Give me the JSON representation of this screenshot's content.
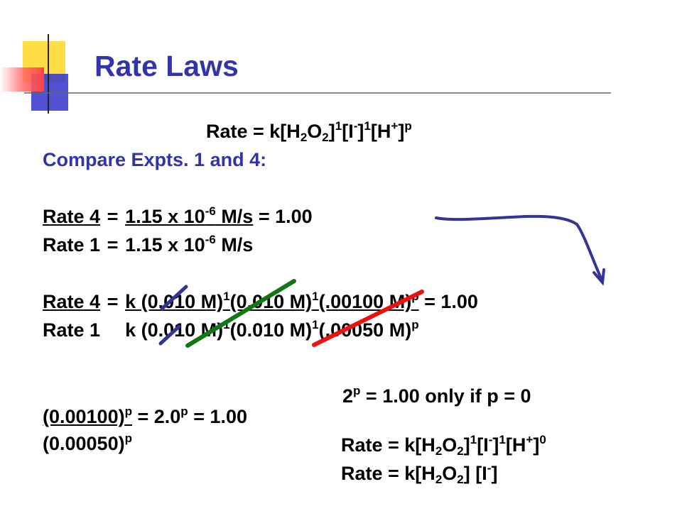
{
  "slide": {
    "title": "Rate Laws",
    "rate_law": {
      "prefix": "Rate = k[H",
      "h2o2_sub1": "2",
      "mid1": "O",
      "h2o2_sub2": "2",
      "mid2": "]",
      "exp1": "1",
      "mid3": "[I",
      "iminus": "-",
      "mid4": "]",
      "exp2": "1",
      "mid5": "[H",
      "hplus": "+",
      "mid6": "]",
      "exp3": "p"
    },
    "compare_heading": "Compare Expts. 1 and 4:",
    "ratio1": {
      "num_label": "Rate 4",
      "den_label": "Rate 1",
      "eq": "=",
      "num_value_a": "1.15 x 10",
      "num_exp": "-6",
      "num_value_b": " M/s",
      "num_result": " = 1.00",
      "den_value_a": "1.15 x 10",
      "den_exp": "-6",
      "den_value_b": " M/s"
    },
    "ratio2": {
      "num_label": "Rate 4",
      "den_label": "Rate 1",
      "eq": "=",
      "num_a": "k (0.010 M)",
      "num_e1": "1",
      "num_b": "(0.010 M)",
      "num_e2": "1",
      "num_c": "(.00100 M)",
      "num_e3": "p",
      "num_result": " = 1.00",
      "den_a": "k (0.010 M)",
      "den_e1": "1",
      "den_b": "(0.010 M)",
      "den_e2": "1",
      "den_c": "(.00050 M)",
      "den_e3": "p"
    },
    "ratio3": {
      "num_a": "(0.00100)",
      "num_e": "p",
      "mid_a": " = 2.0",
      "mid_e": "p",
      "mid_b": " = 1.00",
      "den_a": "(0.00050)",
      "den_e": "p"
    },
    "conclusion": {
      "base": "2",
      "exp": "p",
      "text": " = 1.00 only if p = 0"
    },
    "final1": {
      "a": "Rate = k[H",
      "s1": "2",
      "b": "O",
      "s2": "2",
      "c": "]",
      "e1": "1",
      "d": "[I",
      "im": "-",
      "e": "]",
      "e2": "1",
      "f": "[H",
      "hp": "+",
      "g": "]",
      "e3": "0"
    },
    "final2": {
      "a": "Rate = k[H",
      "s1": "2",
      "b": "O",
      "s2": "2",
      "c": "] [I",
      "im": "-",
      "d": "]"
    },
    "colors": {
      "title": "#3333aa",
      "heading": "#3333aa",
      "deco_yellow": "#ffdd44",
      "deco_red": "#ff6666",
      "deco_blue": "#3333cc",
      "pen_blue": "#333399",
      "strike_green": "#117711",
      "strike_red": "#ee1111"
    }
  }
}
